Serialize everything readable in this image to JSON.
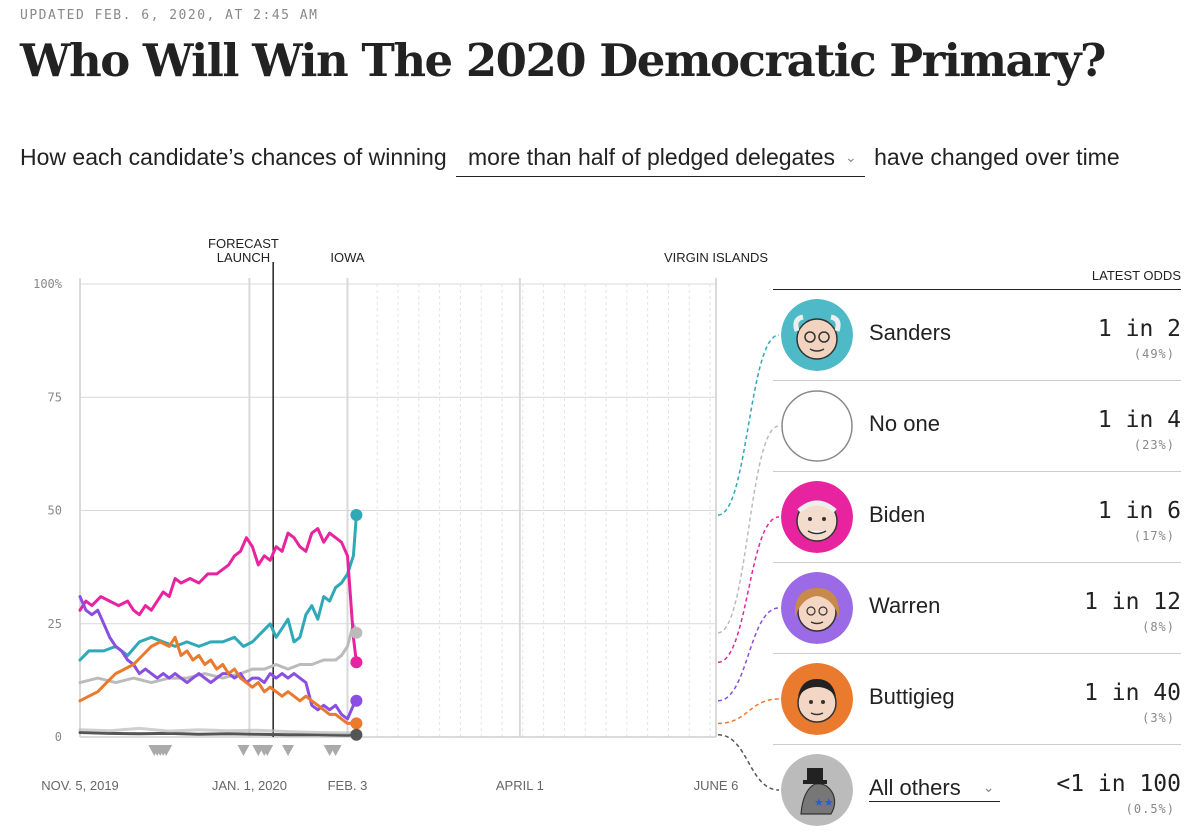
{
  "header": {
    "updated": "UPDATED FEB. 6, 2020, AT 2:45 AM",
    "title": "Who Will Win The 2020 Democratic Primary?"
  },
  "subtitle": {
    "prefix": "How each candidate’s chances of winning",
    "dropdown_value": "more than half of pledged delegates",
    "suffix": "have changed over time"
  },
  "latest_odds": {
    "header": "LATEST ODDS",
    "candidates": [
      {
        "name": "Sanders",
        "odds": "1 in 2",
        "pct": "(49%)",
        "color": "#2fa8b7",
        "ring": "#4ebac8"
      },
      {
        "name": "No one",
        "odds": "1 in 4",
        "pct": "(23%)",
        "color": "#bbbbbb",
        "ring": "#888888"
      },
      {
        "name": "Biden",
        "odds": "1 in 6",
        "pct": "(17%)",
        "color": "#e8239f",
        "ring": "#e8239f"
      },
      {
        "name": "Warren",
        "odds": "1 in 12",
        "pct": "(8%)",
        "color": "#8a4fe0",
        "ring": "#9b6ae6"
      },
      {
        "name": "Buttigieg",
        "odds": "1 in 40",
        "pct": "(3%)",
        "color": "#ea7a2e",
        "ring": "#ea7a2e"
      },
      {
        "name": "All others",
        "odds": "<1 in 100",
        "pct": "(0.5%)",
        "color": "#555555",
        "ring": "#888888"
      }
    ]
  },
  "chart_data": {
    "type": "line",
    "title": "",
    "xlabel": "",
    "ylabel": "",
    "ylim": [
      0,
      100
    ],
    "yticks": [
      0,
      25,
      50,
      75,
      100
    ],
    "ytick_labels": [
      "0",
      "25",
      "50",
      "75",
      "100%"
    ],
    "x_domain_days": [
      0,
      214
    ],
    "x_ticks": [
      {
        "day": 0,
        "label": "NOV. 5, 2019"
      },
      {
        "day": 57,
        "label": "JAN. 1, 2020"
      },
      {
        "day": 90,
        "label": "FEB. 3"
      },
      {
        "day": 148,
        "label": "APRIL 1"
      },
      {
        "day": 214,
        "label": "JUNE 6"
      }
    ],
    "event_markers": [
      {
        "day": 55,
        "label_lines": [
          "FORECAST",
          "LAUNCH"
        ]
      },
      {
        "day": 90,
        "label_lines": [
          "IOWA"
        ]
      },
      {
        "day": 214,
        "label_lines": [
          "VIRGIN ISLANDS"
        ]
      }
    ],
    "current_day": 65,
    "last_data_day": 93,
    "triangle_days": [
      25,
      26,
      27,
      28,
      29,
      55,
      60,
      62,
      63,
      70,
      84,
      86
    ],
    "series": [
      {
        "name": "Sanders",
        "color": "#2fa8b7",
        "points": [
          [
            0,
            17
          ],
          [
            3,
            19
          ],
          [
            8,
            19
          ],
          [
            12,
            20
          ],
          [
            16,
            18
          ],
          [
            20,
            21
          ],
          [
            24,
            22
          ],
          [
            28,
            21
          ],
          [
            32,
            20
          ],
          [
            36,
            21
          ],
          [
            40,
            20
          ],
          [
            44,
            21
          ],
          [
            48,
            21
          ],
          [
            52,
            22
          ],
          [
            55,
            20
          ],
          [
            58,
            21
          ],
          [
            61,
            23
          ],
          [
            64,
            25
          ],
          [
            66,
            22
          ],
          [
            68,
            24
          ],
          [
            70,
            26
          ],
          [
            72,
            21
          ],
          [
            74,
            22
          ],
          [
            76,
            27
          ],
          [
            78,
            29
          ],
          [
            80,
            26
          ],
          [
            82,
            31
          ],
          [
            84,
            30
          ],
          [
            86,
            33
          ],
          [
            88,
            34
          ],
          [
            90,
            36
          ],
          [
            92,
            40
          ],
          [
            93,
            49
          ]
        ]
      },
      {
        "name": "No one",
        "color": "#bbbbbb",
        "points": [
          [
            0,
            12
          ],
          [
            6,
            13
          ],
          [
            12,
            12
          ],
          [
            18,
            13
          ],
          [
            24,
            12
          ],
          [
            30,
            13
          ],
          [
            36,
            13
          ],
          [
            42,
            14
          ],
          [
            48,
            13
          ],
          [
            54,
            14
          ],
          [
            58,
            15
          ],
          [
            62,
            15
          ],
          [
            66,
            16
          ],
          [
            70,
            15
          ],
          [
            74,
            16
          ],
          [
            78,
            16
          ],
          [
            82,
            17
          ],
          [
            86,
            17
          ],
          [
            88,
            18
          ],
          [
            90,
            20
          ],
          [
            92,
            25
          ],
          [
            93,
            23
          ]
        ]
      },
      {
        "name": "Biden",
        "color": "#e8239f",
        "points": [
          [
            0,
            28
          ],
          [
            2,
            30
          ],
          [
            4,
            29
          ],
          [
            7,
            31
          ],
          [
            10,
            30
          ],
          [
            13,
            29
          ],
          [
            16,
            30
          ],
          [
            18,
            28
          ],
          [
            20,
            27
          ],
          [
            22,
            29
          ],
          [
            24,
            28
          ],
          [
            26,
            30
          ],
          [
            28,
            32
          ],
          [
            30,
            31
          ],
          [
            32,
            35
          ],
          [
            34,
            34
          ],
          [
            37,
            35
          ],
          [
            40,
            34
          ],
          [
            43,
            36
          ],
          [
            46,
            36
          ],
          [
            48,
            37
          ],
          [
            50,
            38
          ],
          [
            52,
            40
          ],
          [
            54,
            41
          ],
          [
            56,
            44
          ],
          [
            58,
            42
          ],
          [
            60,
            38
          ],
          [
            62,
            40
          ],
          [
            64,
            39
          ],
          [
            66,
            42
          ],
          [
            68,
            41
          ],
          [
            70,
            45
          ],
          [
            72,
            44
          ],
          [
            74,
            42
          ],
          [
            76,
            41
          ],
          [
            78,
            45
          ],
          [
            80,
            46
          ],
          [
            82,
            43
          ],
          [
            84,
            45
          ],
          [
            86,
            44
          ],
          [
            88,
            43
          ],
          [
            90,
            40
          ],
          [
            92,
            22
          ],
          [
            93,
            16.5
          ]
        ]
      },
      {
        "name": "Warren",
        "color": "#8a4fe0",
        "points": [
          [
            0,
            31
          ],
          [
            2,
            28
          ],
          [
            4,
            27
          ],
          [
            6,
            28
          ],
          [
            8,
            25
          ],
          [
            10,
            22
          ],
          [
            12,
            20
          ],
          [
            14,
            19
          ],
          [
            16,
            17
          ],
          [
            18,
            16
          ],
          [
            20,
            14
          ],
          [
            22,
            15
          ],
          [
            24,
            14
          ],
          [
            26,
            13
          ],
          [
            28,
            14
          ],
          [
            30,
            13
          ],
          [
            32,
            14
          ],
          [
            34,
            13
          ],
          [
            36,
            12
          ],
          [
            38,
            13
          ],
          [
            40,
            14
          ],
          [
            42,
            13
          ],
          [
            44,
            12
          ],
          [
            46,
            13
          ],
          [
            48,
            14
          ],
          [
            50,
            14
          ],
          [
            52,
            13
          ],
          [
            54,
            14
          ],
          [
            56,
            12
          ],
          [
            58,
            13
          ],
          [
            60,
            13
          ],
          [
            62,
            12
          ],
          [
            64,
            14
          ],
          [
            66,
            13
          ],
          [
            68,
            14
          ],
          [
            70,
            13
          ],
          [
            72,
            14
          ],
          [
            74,
            13
          ],
          [
            76,
            12
          ],
          [
            78,
            7
          ],
          [
            80,
            6
          ],
          [
            82,
            7
          ],
          [
            84,
            6
          ],
          [
            86,
            7
          ],
          [
            88,
            5
          ],
          [
            90,
            4
          ],
          [
            92,
            7
          ],
          [
            93,
            8
          ]
        ]
      },
      {
        "name": "Buttigieg",
        "color": "#ea7a2e",
        "points": [
          [
            0,
            8
          ],
          [
            3,
            9
          ],
          [
            6,
            10
          ],
          [
            9,
            12
          ],
          [
            12,
            14
          ],
          [
            15,
            15
          ],
          [
            18,
            16
          ],
          [
            21,
            18
          ],
          [
            24,
            20
          ],
          [
            27,
            21
          ],
          [
            30,
            20
          ],
          [
            32,
            22
          ],
          [
            34,
            18
          ],
          [
            36,
            19
          ],
          [
            38,
            17
          ],
          [
            40,
            18
          ],
          [
            42,
            16
          ],
          [
            44,
            17
          ],
          [
            46,
            15
          ],
          [
            48,
            16
          ],
          [
            50,
            14
          ],
          [
            52,
            15
          ],
          [
            54,
            13
          ],
          [
            56,
            12
          ],
          [
            58,
            11
          ],
          [
            60,
            12
          ],
          [
            62,
            10
          ],
          [
            64,
            11
          ],
          [
            66,
            10
          ],
          [
            68,
            9
          ],
          [
            70,
            10
          ],
          [
            72,
            9
          ],
          [
            74,
            8
          ],
          [
            76,
            9
          ],
          [
            78,
            8
          ],
          [
            80,
            7
          ],
          [
            82,
            6
          ],
          [
            84,
            5
          ],
          [
            86,
            5
          ],
          [
            88,
            4
          ],
          [
            90,
            3
          ],
          [
            92,
            3
          ],
          [
            93,
            3
          ]
        ]
      },
      {
        "name": "All others",
        "color": "#555555",
        "points": [
          [
            0,
            1.0
          ],
          [
            10,
            0.8
          ],
          [
            20,
            0.7
          ],
          [
            30,
            0.8
          ],
          [
            40,
            0.6
          ],
          [
            50,
            0.7
          ],
          [
            60,
            0.6
          ],
          [
            70,
            0.5
          ],
          [
            80,
            0.5
          ],
          [
            90,
            0.4
          ],
          [
            93,
            0.5
          ]
        ]
      },
      {
        "name": "Others (faint)",
        "color": "#bbbbbb",
        "points": [
          [
            0,
            1.6
          ],
          [
            10,
            1.4
          ],
          [
            20,
            1.9
          ],
          [
            30,
            1.3
          ],
          [
            40,
            1.6
          ],
          [
            50,
            1.4
          ],
          [
            60,
            1.5
          ],
          [
            70,
            1.2
          ],
          [
            80,
            1.0
          ],
          [
            90,
            0.9
          ],
          [
            93,
            1.0
          ]
        ]
      }
    ]
  }
}
